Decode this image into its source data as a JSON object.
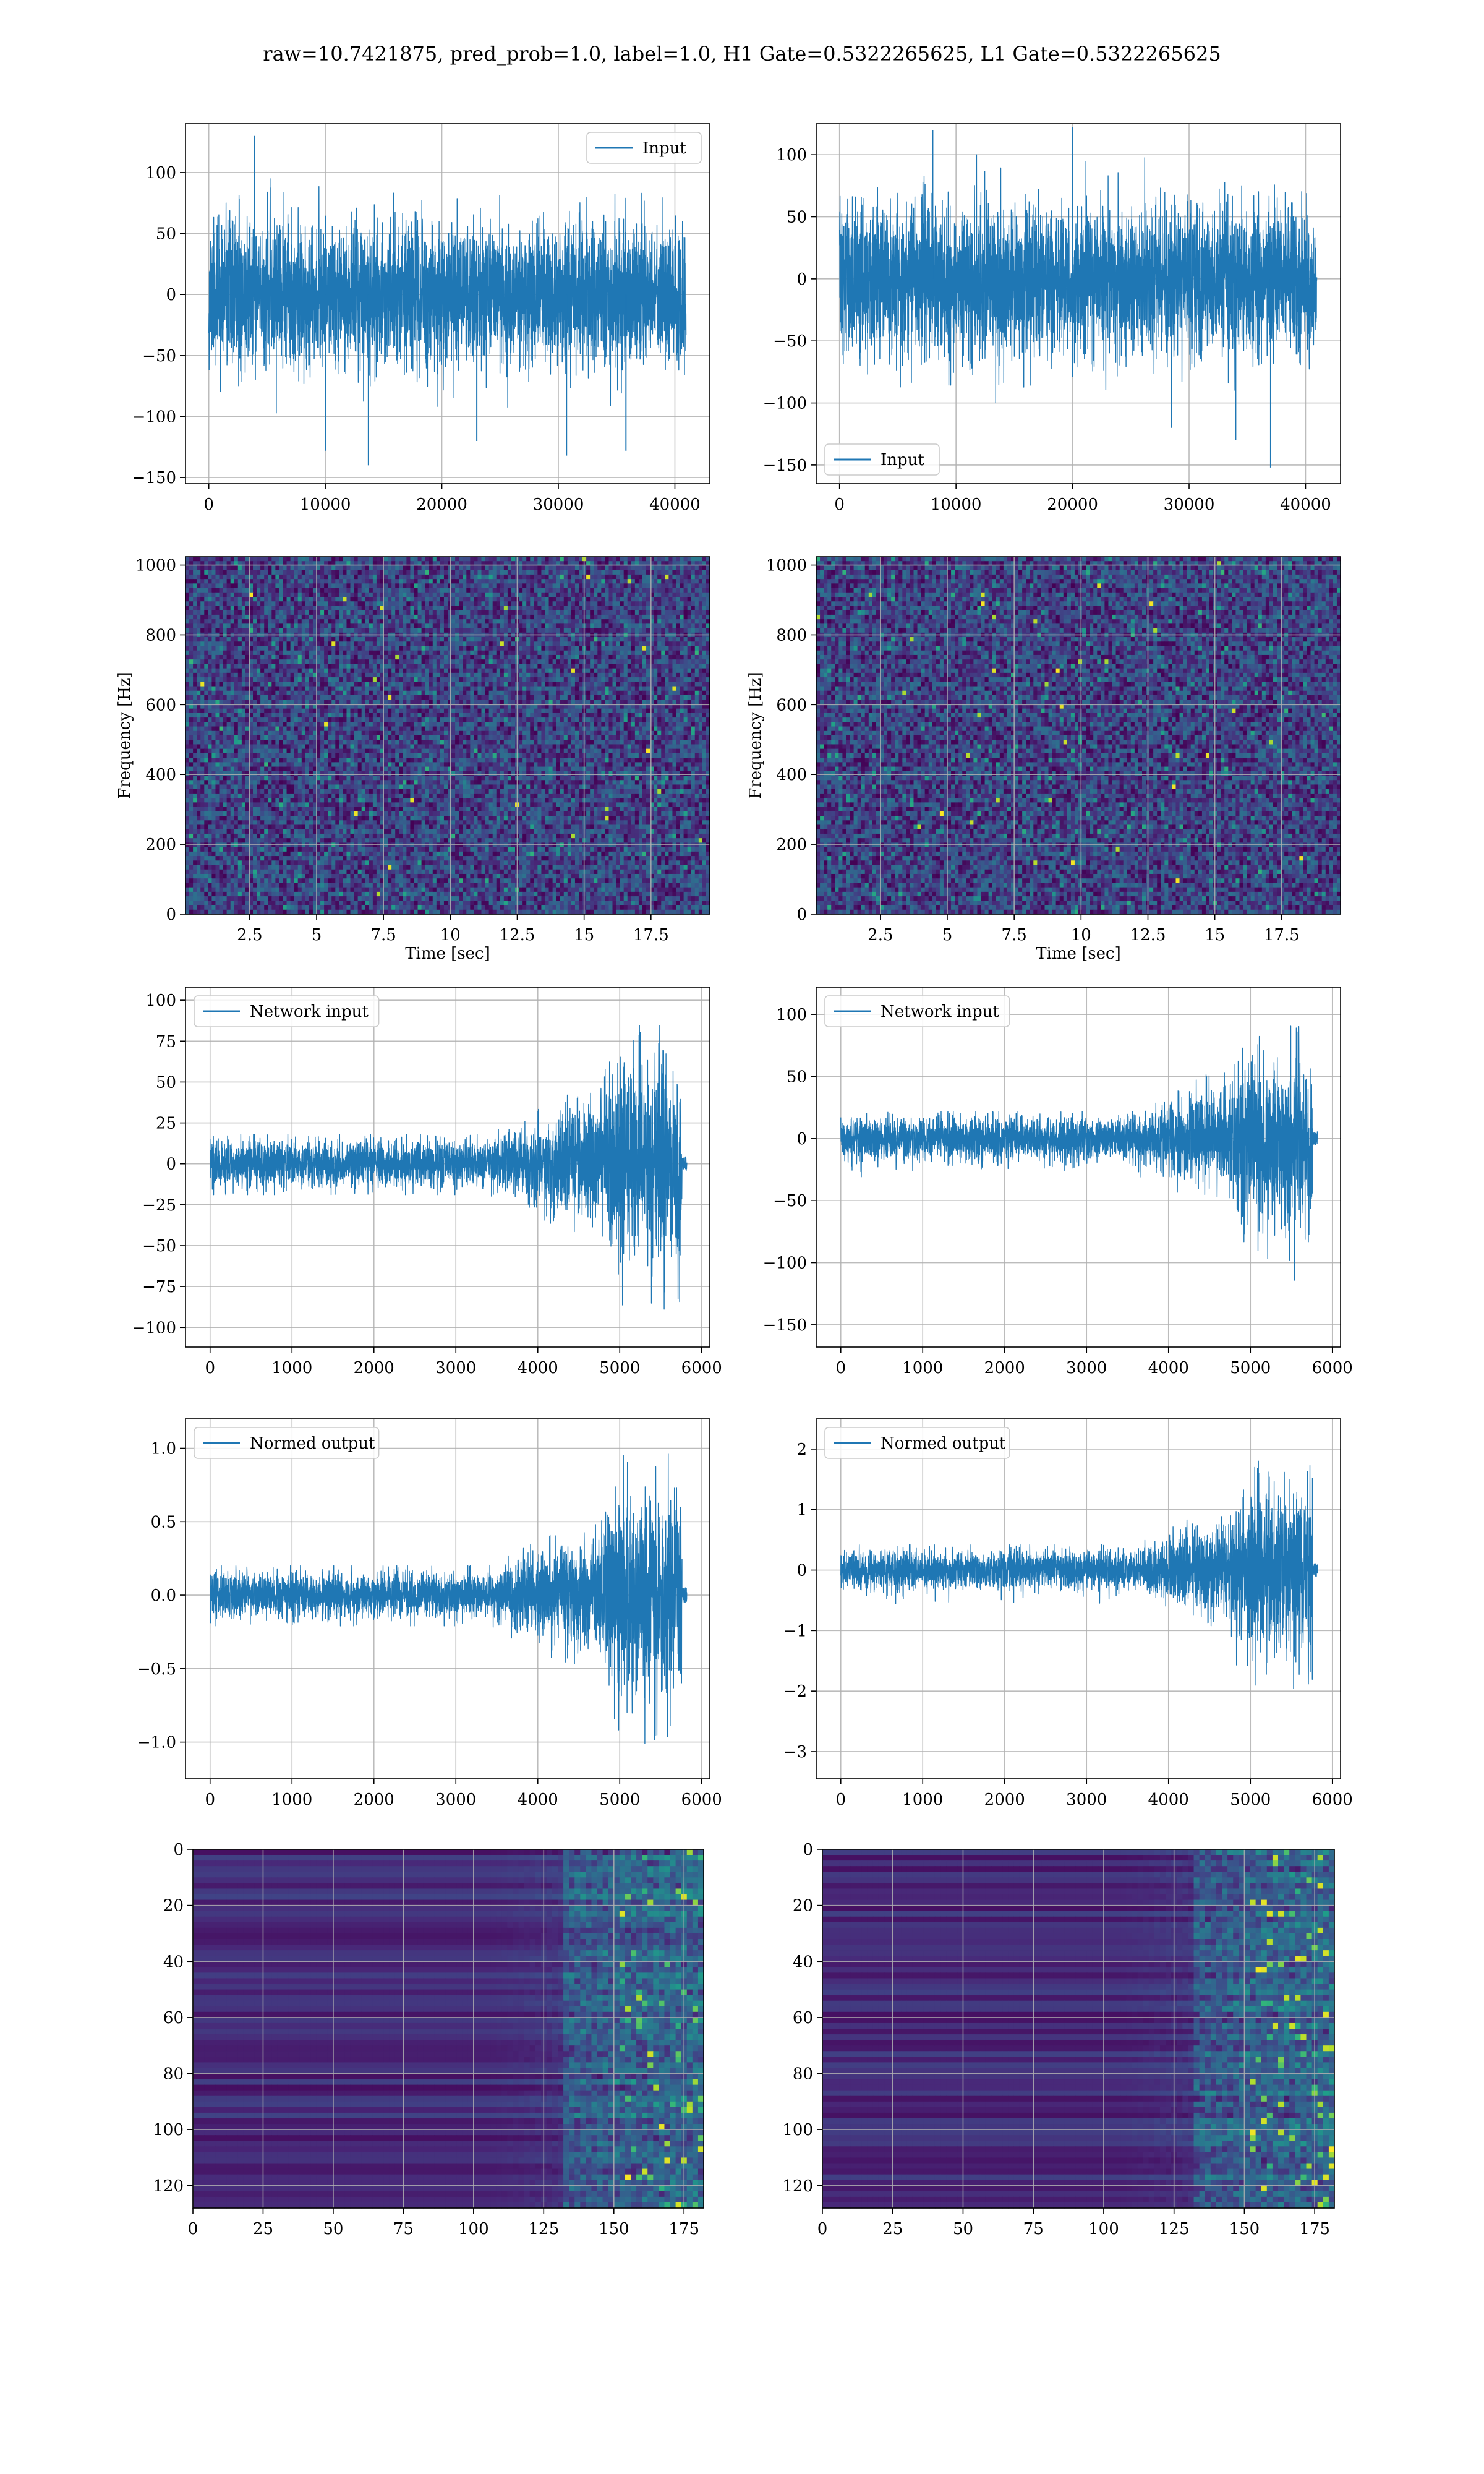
{
  "figure": {
    "suptitle": "raw=10.7421875, pred_prob=1.0, label=1.0, H1 Gate=0.5322265625, L1 Gate=0.5322265625"
  },
  "colors": {
    "line": "#1f77b4",
    "grid": "#b0b0b0",
    "viridis_low": "#440154",
    "viridis_mid": "#21918c",
    "viridis_high": "#fde725"
  },
  "chart_data": [
    {
      "type": "line",
      "id": "raw-h1",
      "title": "",
      "xlabel": "",
      "ylabel": "",
      "legend": "Input",
      "legend_loc": "upper right",
      "xlim": [
        -2000,
        43000
      ],
      "ylim": [
        -155,
        140
      ],
      "xticks": [
        0,
        10000,
        20000,
        30000,
        40000
      ],
      "yticks": [
        -150,
        -100,
        -50,
        0,
        50,
        100
      ],
      "grid": true,
      "noise": {
        "x_range": [
          0,
          40960
        ],
        "amp": 28,
        "env_min": -100,
        "env_max": 95,
        "outliers": [
          [
            3900,
            130
          ],
          [
            10000,
            -128
          ],
          [
            13700,
            -140
          ],
          [
            30700,
            -132
          ],
          [
            35800,
            -128
          ],
          [
            23000,
            -120
          ]
        ]
      }
    },
    {
      "type": "line",
      "id": "raw-l1",
      "title": "",
      "xlabel": "",
      "ylabel": "",
      "legend": "Input",
      "legend_loc": "lower left",
      "xlim": [
        -2000,
        43000
      ],
      "ylim": [
        -165,
        125
      ],
      "xticks": [
        0,
        10000,
        20000,
        30000,
        40000
      ],
      "yticks": [
        -150,
        -100,
        -50,
        0,
        50,
        100
      ],
      "grid": true,
      "noise": {
        "x_range": [
          0,
          40960
        ],
        "amp": 28,
        "env_min": -100,
        "env_max": 100,
        "outliers": [
          [
            20000,
            122
          ],
          [
            37000,
            -152
          ],
          [
            34000,
            -130
          ],
          [
            8000,
            120
          ],
          [
            28500,
            -120
          ]
        ]
      }
    },
    {
      "type": "heatmap",
      "id": "spec-h1",
      "xlabel": "Time [sec]",
      "ylabel": "Frequency [Hz]",
      "xlim": [
        0.1,
        19.7
      ],
      "ylim": [
        0,
        1024
      ],
      "xticks": [
        2.5,
        5.0,
        7.5,
        10.0,
        12.5,
        15.0,
        17.5
      ],
      "yticks": [
        0,
        200,
        400,
        600,
        800,
        1000
      ],
      "grid": true,
      "colormap": "viridis"
    },
    {
      "type": "heatmap",
      "id": "spec-l1",
      "xlabel": "Time [sec]",
      "ylabel": "Frequency [Hz]",
      "xlim": [
        0.1,
        19.7
      ],
      "ylim": [
        0,
        1024
      ],
      "xticks": [
        2.5,
        5.0,
        7.5,
        10.0,
        12.5,
        15.0,
        17.5
      ],
      "yticks": [
        0,
        200,
        400,
        600,
        800,
        1000
      ],
      "grid": true,
      "colormap": "viridis"
    },
    {
      "type": "line",
      "id": "net-h1",
      "title": "",
      "xlabel": "",
      "ylabel": "",
      "legend": "Network input",
      "legend_loc": "upper left",
      "xlim": [
        -300,
        6100
      ],
      "ylim": [
        -112,
        108
      ],
      "xticks": [
        0,
        1000,
        2000,
        3000,
        4000,
        5000,
        6000
      ],
      "yticks": [
        -100,
        -75,
        -50,
        -25,
        0,
        25,
        50,
        75,
        100
      ],
      "grid": true,
      "chirp": {
        "x_end": 5760,
        "tail_end": 5820,
        "base": 18,
        "rise_start": 3400,
        "rise_mid": 4400,
        "peak": 95,
        "peak_start": 4700,
        "asym_low": 1.05
      }
    },
    {
      "type": "line",
      "id": "net-l1",
      "title": "",
      "xlabel": "",
      "ylabel": "",
      "legend": "Network input",
      "legend_loc": "upper left",
      "xlim": [
        -300,
        6100
      ],
      "ylim": [
        -168,
        122
      ],
      "xticks": [
        0,
        1000,
        2000,
        3000,
        4000,
        5000,
        6000
      ],
      "yticks": [
        -150,
        -100,
        -50,
        0,
        50,
        100
      ],
      "grid": true,
      "chirp": {
        "x_end": 5760,
        "tail_end": 5820,
        "base": 22,
        "rise_start": 3600,
        "rise_mid": 4500,
        "peak": 100,
        "peak_start": 4700,
        "asym_low": 1.4
      }
    },
    {
      "type": "line",
      "id": "norm-h1",
      "title": "",
      "xlabel": "",
      "ylabel": "",
      "legend": "Normed output",
      "legend_loc": "upper left",
      "xlim": [
        -300,
        6100
      ],
      "ylim": [
        -1.25,
        1.2
      ],
      "xticks": [
        0,
        1000,
        2000,
        3000,
        4000,
        5000,
        6000
      ],
      "yticks": [
        -1.0,
        -0.5,
        0.0,
        0.5,
        1.0
      ],
      "tick_decimals": 1,
      "grid": true,
      "chirp": {
        "x_end": 5760,
        "tail_end": 5820,
        "base": 0.2,
        "rise_start": 3400,
        "rise_mid": 4400,
        "peak": 1.08,
        "peak_start": 4700,
        "asym_low": 1.05
      }
    },
    {
      "type": "line",
      "id": "norm-l1",
      "title": "",
      "xlabel": "",
      "ylabel": "",
      "legend": "Normed output",
      "legend_loc": "upper left",
      "xlim": [
        -300,
        6100
      ],
      "ylim": [
        -3.45,
        2.5
      ],
      "xticks": [
        0,
        1000,
        2000,
        3000,
        4000,
        5000,
        6000
      ],
      "yticks": [
        -3,
        -2,
        -1,
        0,
        1,
        2
      ],
      "grid": true,
      "chirp": {
        "x_end": 5760,
        "tail_end": 5820,
        "base": 0.42,
        "rise_start": 3600,
        "rise_mid": 4500,
        "peak": 2.0,
        "peak_start": 4700,
        "asym_low": 1.45
      }
    },
    {
      "type": "heatmap",
      "id": "feat-h1",
      "xlabel": "",
      "ylabel": "",
      "xlim": [
        0,
        182
      ],
      "ylim": [
        128,
        0
      ],
      "xticks": [
        0,
        25,
        50,
        75,
        100,
        125,
        150,
        175
      ],
      "yticks": [
        0,
        20,
        40,
        60,
        80,
        100,
        120
      ],
      "grid": true,
      "colormap": "viridis"
    },
    {
      "type": "heatmap",
      "id": "feat-l1",
      "xlabel": "",
      "ylabel": "",
      "xlim": [
        0,
        182
      ],
      "ylim": [
        128,
        0
      ],
      "xticks": [
        0,
        25,
        50,
        75,
        100,
        125,
        150,
        175
      ],
      "yticks": [
        0,
        20,
        40,
        60,
        80,
        100,
        120
      ],
      "grid": true,
      "colormap": "viridis"
    }
  ]
}
